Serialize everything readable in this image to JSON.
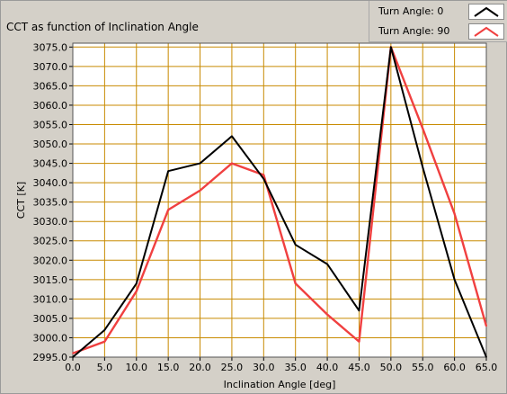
{
  "chart_data": {
    "type": "line",
    "title": "CCT as function of Inclination Angle",
    "xlabel": "Inclination Angle [deg]",
    "ylabel": "CCT [K]",
    "x": [
      0.0,
      5.0,
      10.0,
      15.0,
      20.0,
      25.0,
      30.0,
      35.0,
      40.0,
      45.0,
      50.0,
      55.0,
      60.0,
      65.0
    ],
    "x_tick_labels": [
      "0.0",
      "5.0",
      "10.0",
      "15.0",
      "20.0",
      "25.0",
      "30.0",
      "35.0",
      "40.0",
      "45.0",
      "50.0",
      "55.0",
      "60.0",
      "65.0"
    ],
    "y_tick_values": [
      2995.0,
      3000.0,
      3005.0,
      3010.0,
      3015.0,
      3020.0,
      3025.0,
      3030.0,
      3035.0,
      3040.0,
      3045.0,
      3050.0,
      3055.0,
      3060.0,
      3065.0,
      3070.0,
      3075.0
    ],
    "y_tick_labels": [
      "2995.0",
      "3000.0",
      "3005.0",
      "3010.0",
      "3015.0",
      "3020.0",
      "3025.0",
      "3030.0",
      "3035.0",
      "3040.0",
      "3045.0",
      "3050.0",
      "3055.0",
      "3060.0",
      "3065.0",
      "3070.0",
      "3075.0"
    ],
    "xlim": [
      0,
      65
    ],
    "ylim": [
      2995,
      3076
    ],
    "grid": true,
    "legend_position": "top-right",
    "series": [
      {
        "name": "Turn Angle:  0",
        "color": "#000000",
        "values": [
          2995,
          3002,
          3014,
          3043,
          3045,
          3052,
          3041,
          3024,
          3019,
          3007,
          3075,
          3044,
          3015,
          2995
        ]
      },
      {
        "name": "Turn Angle:  90",
        "color": "#f04040",
        "values": [
          2996,
          2999,
          3012,
          3033,
          3038,
          3045,
          3042,
          3014,
          3006,
          2999,
          3075,
          3054,
          3032,
          3003
        ]
      }
    ],
    "colors": {
      "plot_background": "#ffffff",
      "grid": "#c88a00",
      "panel": "#d4d0c8"
    }
  }
}
